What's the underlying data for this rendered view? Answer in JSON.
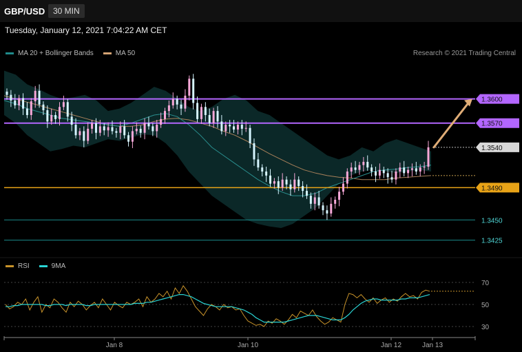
{
  "header": {
    "symbol": "GBP/USD",
    "timeframe": "30 MIN"
  },
  "datetime": "Tuesday, January 12, 2021 7:04:22 AM CET",
  "legend_main": [
    {
      "label": "MA 20 + Bollinger Bands",
      "color": "#1f8a8a"
    },
    {
      "label": "MA 50",
      "color": "#d4a373"
    }
  ],
  "copyright": "Research © 2021 Trading Central",
  "legend_rsi": [
    {
      "label": "RSI",
      "color": "#c8932a"
    },
    {
      "label": "9MA",
      "color": "#2ad4d4"
    }
  ],
  "colors": {
    "resistance": "#b366ff",
    "support": "#e8a317",
    "lower": "#1a8c8c",
    "bull": "#f7a8d8",
    "bear": "#d6f5ff",
    "arrow": "#e0ad77"
  },
  "chart_data": {
    "type": "candlestick",
    "y_range": [
      1.3405,
      1.365
    ],
    "x_labels": [
      "Jan 8",
      "Jan 10",
      "Jan 12",
      "Jan 13"
    ],
    "levels": [
      {
        "value": 1.36,
        "label": "1.3600",
        "kind": "resistance"
      },
      {
        "value": 1.357,
        "label": "1.3570",
        "kind": "resistance"
      },
      {
        "value": 1.354,
        "label": "1.3540",
        "kind": "current"
      },
      {
        "value": 1.349,
        "label": "1.3490",
        "kind": "support"
      },
      {
        "value": 1.345,
        "label": "1.3450",
        "kind": "lower"
      },
      {
        "value": 1.3425,
        "label": "1.3425",
        "kind": "lower"
      }
    ],
    "projection": {
      "from": 1.354,
      "to": 1.36
    },
    "close_path": [
      1.3605,
      1.3598,
      1.3592,
      1.3601,
      1.3588,
      1.358,
      1.3597,
      1.361,
      1.3593,
      1.3586,
      1.3572,
      1.358,
      1.3575,
      1.359,
      1.3596,
      1.3578,
      1.3568,
      1.3555,
      1.356,
      1.3548,
      1.3563,
      1.357,
      1.3558,
      1.3566,
      1.3561,
      1.3565,
      1.356,
      1.3558,
      1.3566,
      1.3555,
      1.3547,
      1.356,
      1.3563,
      1.3558,
      1.357,
      1.3566,
      1.356,
      1.3568,
      1.3575,
      1.3585,
      1.3592,
      1.36,
      1.3593,
      1.3588,
      1.3604,
      1.3625,
      1.3595,
      1.3575,
      1.359,
      1.358,
      1.357,
      1.3585,
      1.3572,
      1.356,
      1.3568,
      1.3566,
      1.3562,
      1.3568,
      1.3563,
      1.3564,
      1.3545,
      1.3525,
      1.3515,
      1.351,
      1.3505,
      1.3495,
      1.3498,
      1.349,
      1.35,
      1.3494,
      1.3488,
      1.35,
      1.3492,
      1.3486,
      1.348,
      1.347,
      1.3478,
      1.3468,
      1.3462,
      1.3458,
      1.347,
      1.3475,
      1.3485,
      1.3495,
      1.351,
      1.3515,
      1.3512,
      1.3518,
      1.3522,
      1.3515,
      1.351,
      1.3505,
      1.3512,
      1.3508,
      1.3503,
      1.35,
      1.351,
      1.3515,
      1.3508,
      1.3512,
      1.3514,
      1.351,
      1.3515,
      1.3516,
      1.354
    ],
    "bb_upper": [
      1.3635,
      1.363,
      1.3618,
      1.3612,
      1.3605,
      1.36,
      1.3602,
      1.3605,
      1.3598,
      1.3585,
      1.3588,
      1.3595,
      1.3605,
      1.3615,
      1.361,
      1.36,
      1.359,
      1.3585,
      1.359,
      1.36,
      1.3605,
      1.3598,
      1.3585,
      1.358,
      1.357,
      1.356,
      1.355,
      1.354,
      1.353,
      1.3525,
      1.353,
      1.354,
      1.3535,
      1.3545,
      1.355,
      1.3545,
      1.354,
      1.3535
    ],
    "bb_lower": [
      1.358,
      1.357,
      1.3555,
      1.3545,
      1.3535,
      1.3538,
      1.3542,
      1.354,
      1.3545,
      1.355,
      1.3548,
      1.3552,
      1.3556,
      1.3555,
      1.3545,
      1.353,
      1.351,
      1.3495,
      1.348,
      1.347,
      1.346,
      1.345,
      1.3445,
      1.3442,
      1.344,
      1.3445,
      1.3455,
      1.3465,
      1.348,
      1.3495,
      1.3505,
      1.351,
      1.3512,
      1.351,
      1.3508,
      1.351,
      1.3512,
      1.351
    ],
    "ma20": [
      1.3598,
      1.3594,
      1.3588,
      1.3584,
      1.358,
      1.3576,
      1.3574,
      1.3572,
      1.357,
      1.3568,
      1.3566,
      1.357,
      1.3575,
      1.358,
      1.3582,
      1.3578,
      1.3568,
      1.3555,
      1.354,
      1.353,
      1.352,
      1.351,
      1.35,
      1.3492,
      1.3485,
      1.348,
      1.348,
      1.3483,
      1.349,
      1.3495,
      1.35,
      1.3505,
      1.351,
      1.3512,
      1.3513,
      1.3515,
      1.3516,
      1.3518
    ],
    "ma50": [
      1.3604,
      1.36,
      1.3596,
      1.3592,
      1.3588,
      1.3584,
      1.358,
      1.3576,
      1.3572,
      1.3568,
      1.3566,
      1.3566,
      1.3568,
      1.3572,
      1.3575,
      1.3576,
      1.3574,
      1.357,
      1.3566,
      1.356,
      1.3555,
      1.3548,
      1.354,
      1.3532,
      1.3525,
      1.3518,
      1.3512,
      1.3508,
      1.3505,
      1.3503,
      1.3502,
      1.35,
      1.35,
      1.35,
      1.3502,
      1.3503,
      1.3504,
      1.3505
    ],
    "rsi": {
      "y_range": [
        25,
        75
      ],
      "ticks": [
        30,
        50,
        70
      ],
      "rsi": [
        50,
        46,
        48,
        52,
        50,
        55,
        45,
        52,
        57,
        43,
        50,
        47,
        55,
        52,
        47,
        43,
        52,
        48,
        53,
        50,
        45,
        49,
        52,
        47,
        55,
        50,
        45,
        52,
        49,
        47,
        52,
        50,
        52,
        55,
        48,
        57,
        52,
        55,
        60,
        57,
        62,
        55,
        65,
        60,
        67,
        62,
        55,
        48,
        44,
        40,
        46,
        50,
        48,
        45,
        50,
        47,
        48,
        45,
        46,
        40,
        35,
        33,
        31,
        32,
        30,
        35,
        33,
        37,
        35,
        32,
        36,
        41,
        38,
        44,
        42,
        40,
        45,
        39,
        35,
        32,
        34,
        38,
        36,
        34,
        50,
        60,
        59,
        56,
        59,
        55,
        52,
        56,
        51,
        54,
        56,
        52,
        55,
        53,
        57,
        60,
        57,
        58,
        55,
        61,
        63,
        62
      ],
      "ma": [
        48,
        48,
        49,
        49,
        50,
        50,
        50,
        50,
        50,
        50,
        49,
        49,
        50,
        50,
        50,
        49,
        50,
        50,
        50,
        50,
        49,
        49,
        50,
        50,
        50,
        50,
        50,
        50,
        50,
        50,
        50,
        50,
        51,
        51,
        51,
        52,
        52,
        53,
        54,
        55,
        56,
        57,
        58,
        59,
        59,
        58,
        57,
        55,
        53,
        51,
        50,
        49,
        48,
        48,
        48,
        48,
        48,
        47,
        46,
        45,
        43,
        41,
        38,
        36,
        34,
        34,
        34,
        34,
        34,
        34,
        35,
        36,
        37,
        38,
        39,
        40,
        40,
        40,
        39,
        38,
        37,
        36,
        36,
        36,
        38,
        41,
        45,
        48,
        51,
        53,
        54,
        55,
        55,
        54,
        54,
        54,
        54,
        54,
        55,
        55,
        56,
        56,
        56,
        57,
        58,
        59
      ]
    }
  }
}
